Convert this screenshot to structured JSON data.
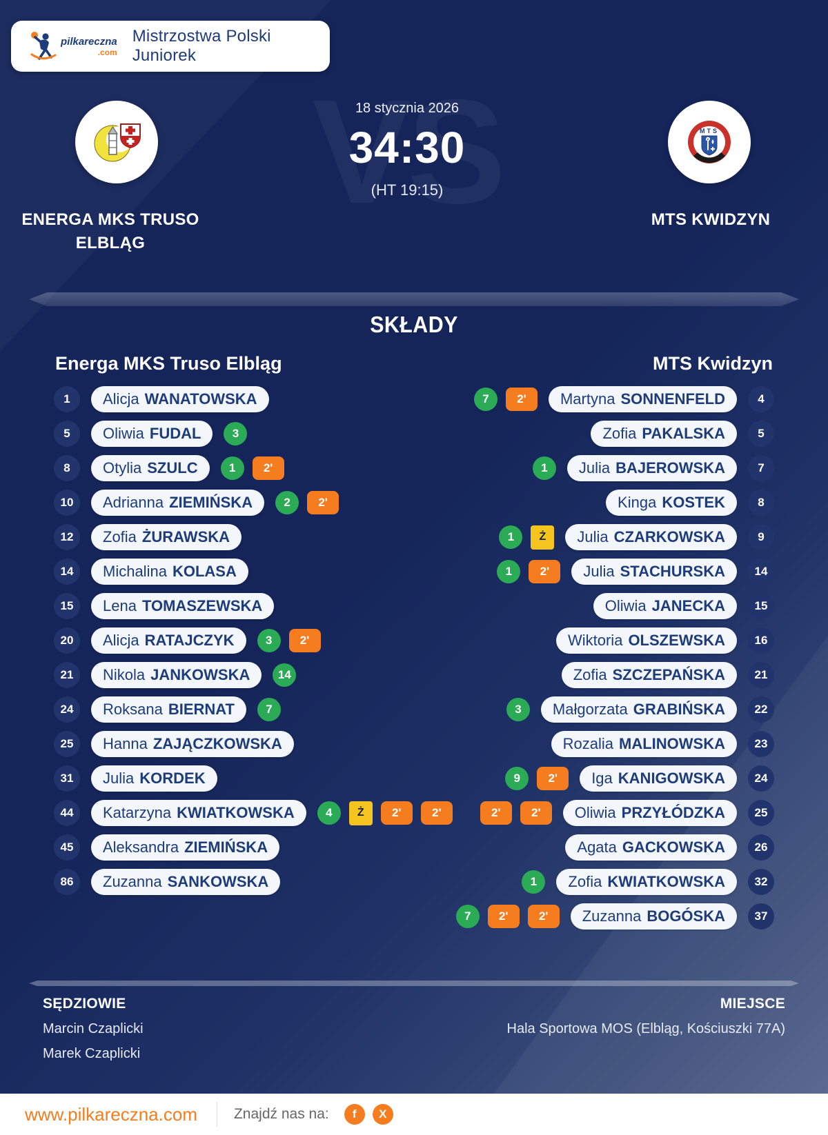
{
  "header": {
    "logo_text": "pilkareczna",
    "logo_tld": ".com",
    "title": "Mistrzostwa Polski Juniorek"
  },
  "match": {
    "date": "18 stycznia 2026",
    "score": "34:30",
    "halftime": "(HT 19:15)",
    "vs_watermark": "VS",
    "home": {
      "name": "ENERGA MKS TRUSO ELBLĄG"
    },
    "away": {
      "name": "MTS KWIDZYN",
      "crest_text": "MTS"
    }
  },
  "lineups": {
    "title": "SKŁADY",
    "home_header": "Energa MKS Truso Elbląg",
    "away_header": "MTS Kwidzyn",
    "home": [
      {
        "number": "1",
        "first": "Alicja",
        "last": "WANATOWSKA",
        "badges": []
      },
      {
        "number": "5",
        "first": "Oliwia",
        "last": "FUDAL",
        "badges": [
          {
            "type": "goals",
            "text": "3"
          }
        ]
      },
      {
        "number": "8",
        "first": "Otylia",
        "last": "SZULC",
        "badges": [
          {
            "type": "goals",
            "text": "1"
          },
          {
            "type": "susp",
            "text": "2'"
          }
        ]
      },
      {
        "number": "10",
        "first": "Adrianna",
        "last": "ZIEMIŃSKA",
        "badges": [
          {
            "type": "goals",
            "text": "2"
          },
          {
            "type": "susp",
            "text": "2'"
          }
        ]
      },
      {
        "number": "12",
        "first": "Zofia",
        "last": "ŻURAWSKA",
        "badges": []
      },
      {
        "number": "14",
        "first": "Michalina",
        "last": "KOLASA",
        "badges": []
      },
      {
        "number": "15",
        "first": "Lena",
        "last": "TOMASZEWSKA",
        "badges": []
      },
      {
        "number": "20",
        "first": "Alicja",
        "last": "RATAJCZYK",
        "badges": [
          {
            "type": "goals",
            "text": "3"
          },
          {
            "type": "susp",
            "text": "2'"
          }
        ]
      },
      {
        "number": "21",
        "first": "Nikola",
        "last": "JANKOWSKA",
        "badges": [
          {
            "type": "goals",
            "text": "14"
          }
        ]
      },
      {
        "number": "24",
        "first": "Roksana",
        "last": "BIERNAT",
        "badges": [
          {
            "type": "goals",
            "text": "7"
          }
        ]
      },
      {
        "number": "25",
        "first": "Hanna",
        "last": "ZAJĄCZKOWSKA",
        "badges": []
      },
      {
        "number": "31",
        "first": "Julia",
        "last": "KORDEK",
        "badges": []
      },
      {
        "number": "44",
        "first": "Katarzyna",
        "last": "KWIATKOWSKA",
        "badges": [
          {
            "type": "goals",
            "text": "4"
          },
          {
            "type": "card",
            "text": "Ż"
          },
          {
            "type": "susp",
            "text": "2'"
          },
          {
            "type": "susp",
            "text": "2'"
          }
        ]
      },
      {
        "number": "45",
        "first": "Aleksandra",
        "last": "ZIEMIŃSKA",
        "badges": []
      },
      {
        "number": "86",
        "first": "Zuzanna",
        "last": "SANKOWSKA",
        "badges": []
      }
    ],
    "away": [
      {
        "number": "4",
        "first": "Martyna",
        "last": "SONNENFELD",
        "badges": [
          {
            "type": "goals",
            "text": "7"
          },
          {
            "type": "susp",
            "text": "2'"
          }
        ]
      },
      {
        "number": "5",
        "first": "Zofia",
        "last": "PAKALSKA",
        "badges": []
      },
      {
        "number": "7",
        "first": "Julia",
        "last": "BAJEROWSKA",
        "badges": [
          {
            "type": "goals",
            "text": "1"
          }
        ]
      },
      {
        "number": "8",
        "first": "Kinga",
        "last": "KOSTEK",
        "badges": []
      },
      {
        "number": "9",
        "first": "Julia",
        "last": "CZARKOWSKA",
        "badges": [
          {
            "type": "goals",
            "text": "1"
          },
          {
            "type": "card",
            "text": "Ż"
          }
        ]
      },
      {
        "number": "14",
        "first": "Julia",
        "last": "STACHURSKA",
        "badges": [
          {
            "type": "goals",
            "text": "1"
          },
          {
            "type": "susp",
            "text": "2'"
          }
        ]
      },
      {
        "number": "15",
        "first": "Oliwia",
        "last": "JANECKA",
        "badges": []
      },
      {
        "number": "16",
        "first": "Wiktoria",
        "last": "OLSZEWSKA",
        "badges": []
      },
      {
        "number": "21",
        "first": "Zofia",
        "last": "SZCZEPAŃSKA",
        "badges": []
      },
      {
        "number": "22",
        "first": "Małgorzata",
        "last": "GRABIŃSKA",
        "badges": [
          {
            "type": "goals",
            "text": "3"
          }
        ]
      },
      {
        "number": "23",
        "first": "Rozalia",
        "last": "MALINOWSKA",
        "badges": []
      },
      {
        "number": "24",
        "first": "Iga",
        "last": "KANIGOWSKA",
        "badges": [
          {
            "type": "goals",
            "text": "9"
          },
          {
            "type": "susp",
            "text": "2'"
          }
        ]
      },
      {
        "number": "25",
        "first": "Oliwia",
        "last": "PRZYŁÓDZKA",
        "badges": [
          {
            "type": "susp",
            "text": "2'"
          },
          {
            "type": "susp",
            "text": "2'"
          }
        ]
      },
      {
        "number": "26",
        "first": "Agata",
        "last": "GACKOWSKA",
        "badges": []
      },
      {
        "number": "32",
        "first": "Zofia",
        "last": "KWIATKOWSKA",
        "badges": [
          {
            "type": "goals",
            "text": "1"
          }
        ]
      },
      {
        "number": "37",
        "first": "Zuzanna",
        "last": "BOGÓSKA",
        "badges": [
          {
            "type": "goals",
            "text": "7"
          },
          {
            "type": "susp",
            "text": "2'"
          },
          {
            "type": "susp",
            "text": "2'"
          }
        ]
      }
    ]
  },
  "officials": {
    "referees_label": "SĘDZIOWIE",
    "referees": [
      "Marcin Czaplicki",
      "Marek Czaplicki"
    ],
    "venue_label": "MIEJSCE",
    "venue": "Hala Sportowa MOS (Elbląg, Kościuszki 77A)"
  },
  "footer": {
    "url": "www.pilkareczna.com",
    "social_label": "Znajdź nas na:",
    "facebook_glyph": "f",
    "x_glyph": "X"
  },
  "colors": {
    "background_navy": "#15255a",
    "accent_orange": "#f57d20",
    "goals_green": "#2bab55",
    "yellow_card": "#f6c41f",
    "pill_white": "#f3f6fb",
    "text_navy": "#1d3c79"
  }
}
